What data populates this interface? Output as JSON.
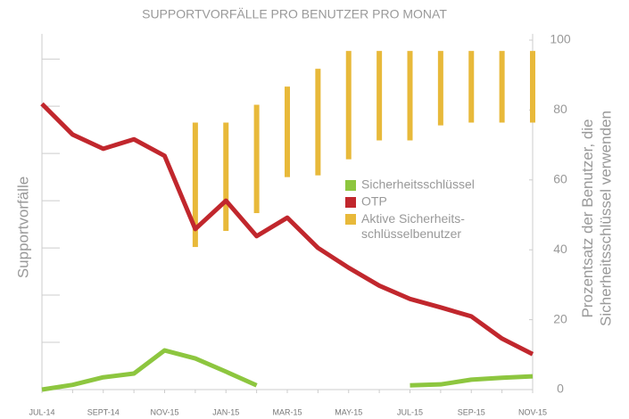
{
  "chart_data": {
    "type": "line",
    "title": "SUPPORTVORFÄLLE PRO BENUTZER PRO MONAT",
    "ylabel": "Supportvorfälle",
    "y2label": "Prozentsatz der Benutzer, die\nSicherheitsschlüssel verwenden",
    "categories": [
      "JUL-14",
      null,
      "SEPT-14",
      null,
      "NOV-15",
      null,
      "JAN-15",
      null,
      "MAR-15",
      null,
      "MAY-15",
      null,
      "JUL-15",
      null,
      "SEP-15",
      null,
      "NOV-15"
    ],
    "ylim": [
      0,
      7.4
    ],
    "yticks": [
      1,
      2,
      3,
      4,
      5,
      6,
      7
    ],
    "y2lim": [
      0,
      100
    ],
    "y2ticks": [
      0,
      20,
      40,
      60,
      80,
      100
    ],
    "series": [
      {
        "name": "Sicherheitsschlüssel",
        "color": "#8dc63f",
        "type": "line",
        "values": [
          0,
          0.1,
          0.26,
          0.34,
          0.83,
          0.66,
          0.38,
          0.09,
          null,
          null,
          null,
          null,
          0.09,
          0.11,
          0.21,
          0.25,
          0.28
        ]
      },
      {
        "name": "OTP",
        "color": "#c1272d",
        "type": "line",
        "values": [
          6.05,
          5.4,
          5.1,
          5.3,
          4.95,
          3.4,
          4.0,
          3.25,
          3.64,
          3.0,
          2.58,
          2.2,
          1.92,
          1.74,
          1.55,
          1.08,
          0.75
        ]
      },
      {
        "name": "Aktive Sicherheits-\nschlüsselbenutzer",
        "color": "#e8b93a",
        "type": "range",
        "axis": "y2",
        "low": [
          null,
          null,
          null,
          null,
          null,
          40.8,
          45.4,
          50.5,
          60.8,
          61.3,
          65.9,
          71.3,
          71.3,
          75.6,
          76.4,
          76.4,
          76.4
        ],
        "values": [
          null,
          null,
          null,
          null,
          null,
          76.4,
          76.4,
          81.5,
          86.7,
          91.8,
          96.9,
          96.9,
          96.9,
          96.9,
          96.9,
          96.9,
          96.9
        ]
      }
    ]
  }
}
